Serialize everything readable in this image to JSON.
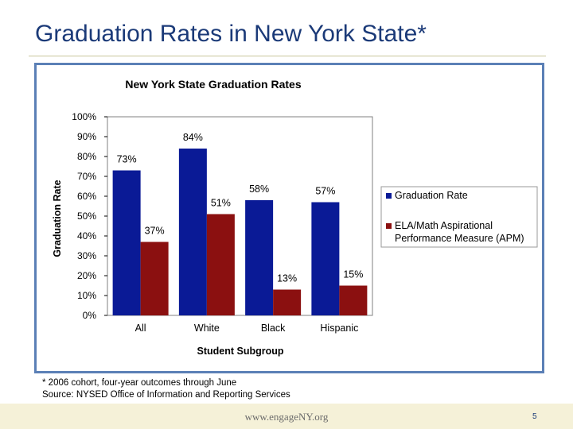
{
  "slide": {
    "title": "Graduation Rates in New York State*",
    "footnote_line1": "* 2006 cohort, four-year outcomes through June",
    "footnote_line2": "Source: NYSED Office of Information and Reporting Services",
    "footer_url": "www.engageNY.org",
    "page_number": "5"
  },
  "colors": {
    "graduation_rate": "#0a1a96",
    "apm": "#8b1010",
    "frame": "#5b80b6",
    "title": "#1b3a78"
  },
  "chart_data": {
    "type": "bar",
    "title": "New York State Graduation Rates",
    "xlabel": "Student Subgroup",
    "ylabel": "Graduation Rate",
    "categories": [
      "All",
      "White",
      "Black",
      "Hispanic"
    ],
    "ylim": [
      0,
      100
    ],
    "yticks": [
      "0%",
      "10%",
      "20%",
      "30%",
      "40%",
      "50%",
      "60%",
      "70%",
      "80%",
      "90%",
      "100%"
    ],
    "grid": false,
    "legend_position": "right",
    "series": [
      {
        "name": "Graduation Rate",
        "values": [
          73,
          84,
          58,
          57
        ],
        "labels": [
          "73%",
          "84%",
          "58%",
          "57%"
        ],
        "color": "#0a1a96"
      },
      {
        "name": "ELA/Math Aspirational Performance Measure (APM)",
        "legend_lines": [
          "ELA/Math Aspirational",
          "Performance Measure (APM)"
        ],
        "values": [
          37,
          51,
          13,
          15
        ],
        "labels": [
          "37%",
          "51%",
          "13%",
          "15%"
        ],
        "color": "#8b1010"
      }
    ]
  }
}
